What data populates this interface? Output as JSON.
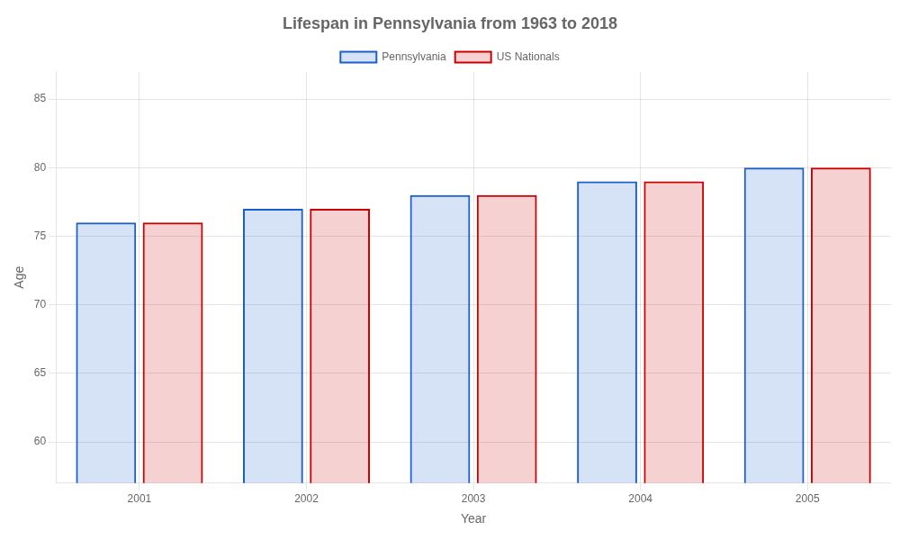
{
  "chart_data": {
    "type": "bar",
    "title": "Lifespan in Pennsylvania from 1963 to 2018",
    "xlabel": "Year",
    "ylabel": "Age",
    "categories": [
      "2001",
      "2002",
      "2003",
      "2004",
      "2005"
    ],
    "series": [
      {
        "name": "Pennsylvania",
        "color": "#1a5fcc",
        "values": [
          76,
          77,
          78,
          79,
          80
        ]
      },
      {
        "name": "US Nationals",
        "color": "#cc0000",
        "values": [
          76,
          77,
          78,
          79,
          80
        ]
      }
    ],
    "ylim": [
      57,
      87
    ],
    "yticks": [
      60,
      65,
      70,
      75,
      80,
      85
    ],
    "grid": true,
    "legend": "top"
  }
}
